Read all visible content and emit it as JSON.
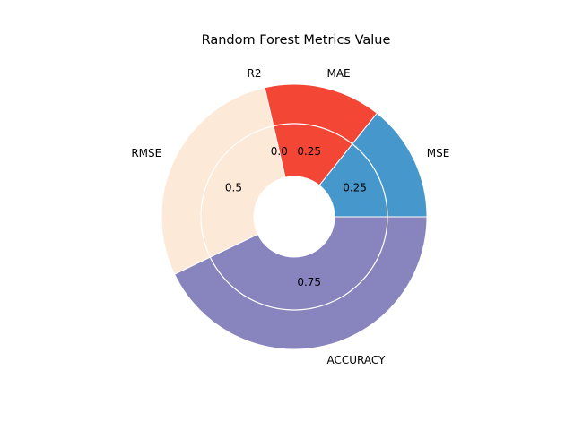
{
  "chart_data": {
    "type": "pie",
    "title": "Random Forest Metrics Value",
    "categories": [
      "MSE",
      "MAE",
      "R2",
      "RMSE",
      "ACCURACY"
    ],
    "values": [
      0.25,
      0.25,
      0.0,
      0.5,
      0.75
    ],
    "value_labels": [
      "0.25",
      "0.25",
      "0.0",
      "0.5",
      "0.75"
    ],
    "colors": [
      "#4697cb",
      "#f44634",
      "#f44634",
      "#fde9d7",
      "#8884bd"
    ],
    "start_angle_deg": 0,
    "direction": "counterclockwise",
    "donut": true,
    "rings": 2,
    "legend": "none",
    "grid": false
  }
}
